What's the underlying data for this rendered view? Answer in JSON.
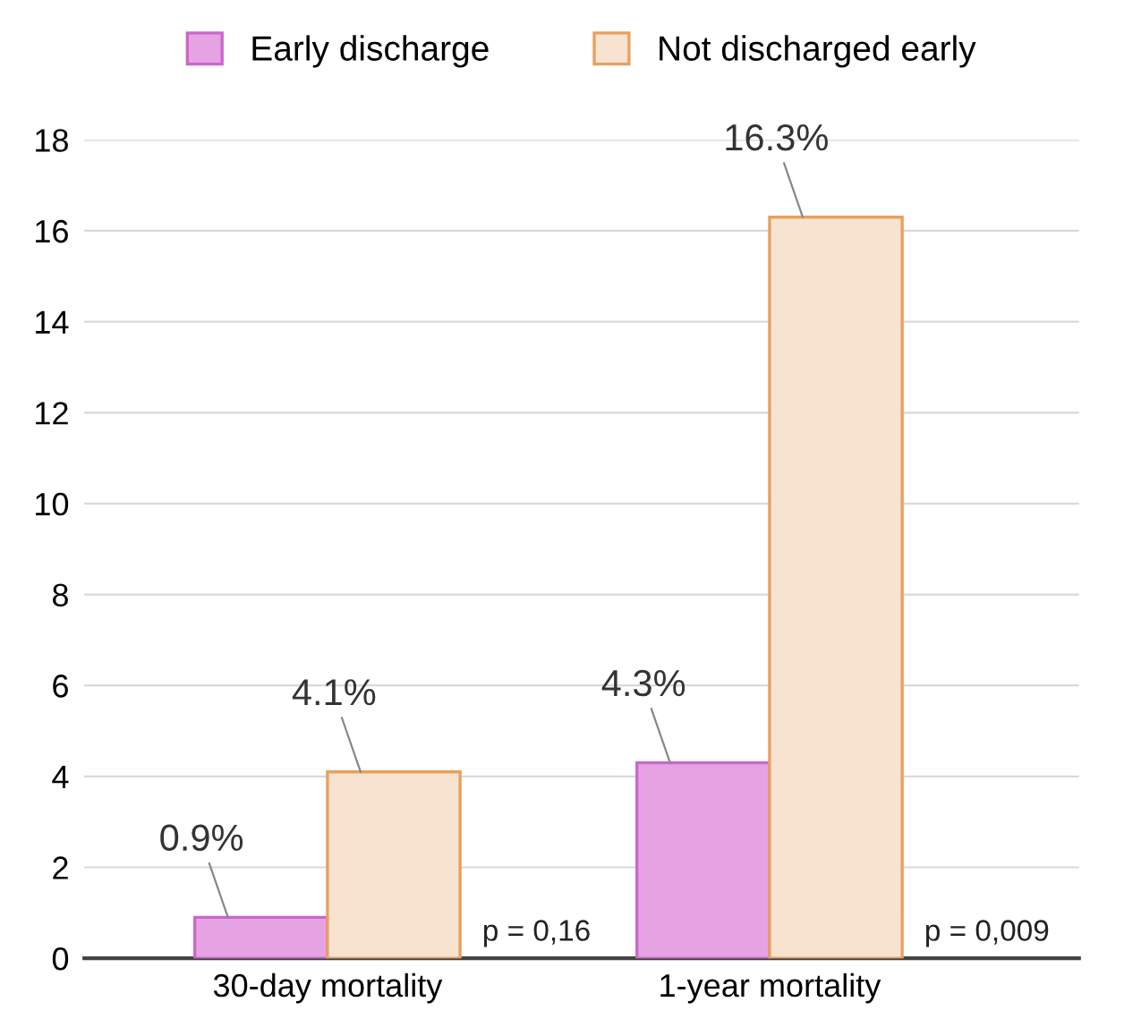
{
  "chart_data": {
    "type": "bar",
    "categories": [
      "30-day mortality",
      "1-year mortality"
    ],
    "series": [
      {
        "name": "Early discharge",
        "color": "#e6a3e3",
        "values": [
          0.9,
          4.3
        ],
        "value_labels": [
          "0.9%",
          "4.3%"
        ]
      },
      {
        "name": "Not discharged early",
        "color": "#f7e3cf",
        "values": [
          4.1,
          16.3
        ],
        "value_labels": [
          "4.1%",
          "16.3%"
        ]
      }
    ],
    "ylim": [
      0,
      18
    ],
    "yticks": [
      0,
      2,
      4,
      6,
      8,
      10,
      12,
      14,
      16,
      18
    ],
    "grid": "y",
    "legend": "top",
    "annotations": [
      "p = 0,16",
      "p = 0,009"
    ]
  }
}
